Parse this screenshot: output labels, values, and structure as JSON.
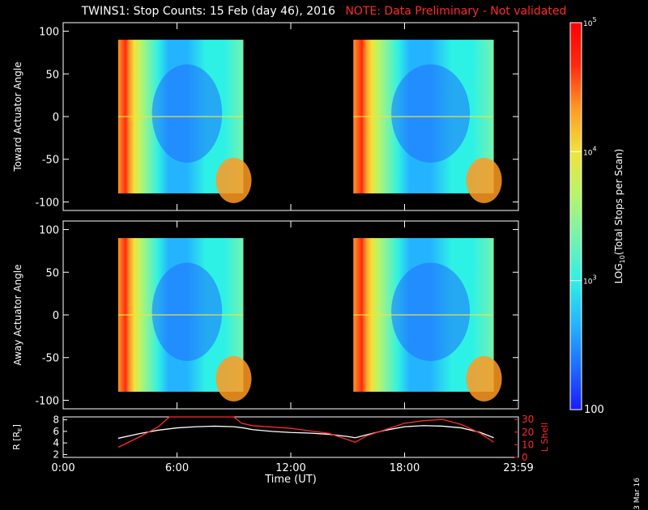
{
  "title": {
    "main": "TWINS1: Stop Counts: 15 Feb (day  46), 2016",
    "note": "NOTE: Data Preliminary - Not validated"
  },
  "side_date": "3 Mar 16",
  "colors": {
    "background": "#000000",
    "axis": "#ffffff",
    "note": "#ff2a2a",
    "lshell": "#ff2a2a",
    "radius": "#ffffff"
  },
  "chart_data": [
    {
      "type": "heatmap",
      "id": "toward",
      "ylabel": "Toward Actuator Angle",
      "ylim": [
        -110,
        110
      ],
      "yticks": [
        100,
        50,
        0,
        -50,
        -100
      ],
      "xlim": [
        0,
        24
      ],
      "xticks": [
        0,
        6,
        12,
        18,
        24
      ],
      "data_blocks": [
        {
          "x_start": 2.9,
          "x_end": 9.5,
          "y_start": -90,
          "y_end": 90
        },
        {
          "x_start": 15.3,
          "x_end": 22.7,
          "y_start": -90,
          "y_end": 90
        }
      ]
    },
    {
      "type": "heatmap",
      "id": "away",
      "ylabel": "Away Actuator Angle",
      "ylim": [
        -110,
        110
      ],
      "yticks": [
        100,
        50,
        0,
        -50,
        -100
      ],
      "xlim": [
        0,
        24
      ],
      "xticks": [
        0,
        6,
        12,
        18,
        24
      ],
      "data_blocks": [
        {
          "x_start": 2.9,
          "x_end": 9.5,
          "y_start": -90,
          "y_end": 90
        },
        {
          "x_start": 15.3,
          "x_end": 22.7,
          "y_start": -90,
          "y_end": 90
        }
      ]
    },
    {
      "type": "line",
      "id": "orbit",
      "ylabel_left": "R [R",
      "ylabel_left_sub": "E",
      "ylabel_left_end": "]",
      "ylim_left": [
        1.5,
        8.5
      ],
      "yticks_left": [
        2,
        4,
        6,
        8
      ],
      "ylabel_right": "L Shell",
      "ylim_right": [
        0,
        32
      ],
      "yticks_right": [
        0,
        10,
        20,
        30
      ],
      "xlabel": "Time (UT)",
      "xlim": [
        0,
        24
      ],
      "xticks": [
        0,
        6,
        12,
        18,
        24
      ],
      "xtick_labels": [
        "0:00",
        "6:00",
        "12:00",
        "18:00",
        "23:59"
      ],
      "series": [
        {
          "axis": "left",
          "x": [
            2.9,
            4,
            5,
            6,
            7,
            8,
            9,
            9.5,
            10,
            11,
            12,
            13,
            14,
            15,
            15.4,
            16,
            17,
            18,
            19,
            20,
            21,
            22,
            22.7
          ],
          "y": [
            4.8,
            5.6,
            6.2,
            6.6,
            6.8,
            6.9,
            6.8,
            6.6,
            6.3,
            6.0,
            5.8,
            5.7,
            5.5,
            5.1,
            4.9,
            5.4,
            6.2,
            6.8,
            7.0,
            6.9,
            6.6,
            5.8,
            4.9
          ]
        },
        {
          "axis": "right",
          "x": [
            2.9,
            4,
            5,
            5.6,
            9.0,
            9.4,
            10,
            12,
            14,
            15.4,
            16,
            17,
            18,
            19,
            20,
            21,
            22,
            22.7
          ],
          "y": [
            8,
            16,
            24,
            32,
            32,
            27,
            25,
            23,
            19,
            12,
            17,
            22,
            27,
            29,
            30,
            26,
            19,
            12
          ]
        }
      ]
    },
    {
      "type": "colorbar",
      "id": "colorbar",
      "label_pre": "LOG",
      "label_sub": "10",
      "label_post": "(Total Stops per Scan)",
      "range": [
        100,
        100000
      ],
      "scale": "log",
      "ticks": [
        {
          "value": 100000,
          "base": "10",
          "exp": "5"
        },
        {
          "value": 10000,
          "base": "10",
          "exp": "4"
        },
        {
          "value": 1000,
          "base": "10",
          "exp": "3"
        },
        {
          "value": 100,
          "text": "100"
        }
      ],
      "palette": [
        "#1a1aff",
        "#1f6dff",
        "#24b4ff",
        "#2ef1e5",
        "#74f3ae",
        "#b6f56a",
        "#f2e23b",
        "#ff9a22",
        "#ff2a12",
        "#ff0000"
      ]
    }
  ]
}
